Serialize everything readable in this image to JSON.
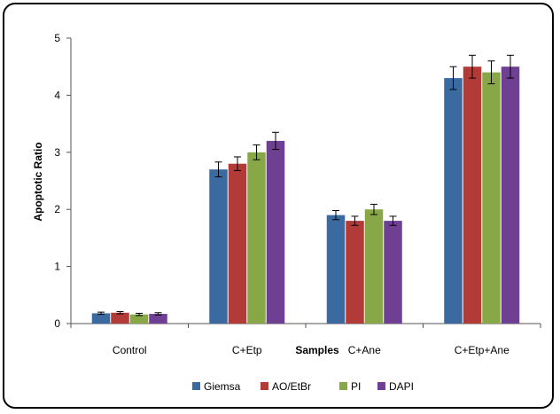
{
  "chart_data": {
    "type": "bar",
    "xlabel": "Samples",
    "ylabel": "Apoptotic Ratio",
    "ylim": [
      0,
      5
    ],
    "yticks": [
      0,
      1,
      2,
      3,
      4,
      5
    ],
    "categories": [
      "Control",
      "C+Etp",
      "C+Ane",
      "C+Etp+Ane"
    ],
    "legend_position": "bottom",
    "grid": false,
    "series": [
      {
        "name": "Giemsa",
        "color": "#3b6aa0",
        "values": [
          0.18,
          2.7,
          1.9,
          4.3
        ],
        "errors": [
          0.02,
          0.13,
          0.08,
          0.2
        ]
      },
      {
        "name": "AO/EtBr",
        "color": "#b33b37",
        "values": [
          0.19,
          2.8,
          1.8,
          4.5
        ],
        "errors": [
          0.02,
          0.12,
          0.08,
          0.2
        ]
      },
      {
        "name": "PI",
        "color": "#88a848",
        "values": [
          0.16,
          3.0,
          2.0,
          4.4
        ],
        "errors": [
          0.02,
          0.13,
          0.09,
          0.2
        ]
      },
      {
        "name": "DAPI",
        "color": "#6f3f93",
        "values": [
          0.17,
          3.2,
          1.8,
          4.5
        ],
        "errors": [
          0.02,
          0.15,
          0.08,
          0.2
        ]
      }
    ]
  }
}
